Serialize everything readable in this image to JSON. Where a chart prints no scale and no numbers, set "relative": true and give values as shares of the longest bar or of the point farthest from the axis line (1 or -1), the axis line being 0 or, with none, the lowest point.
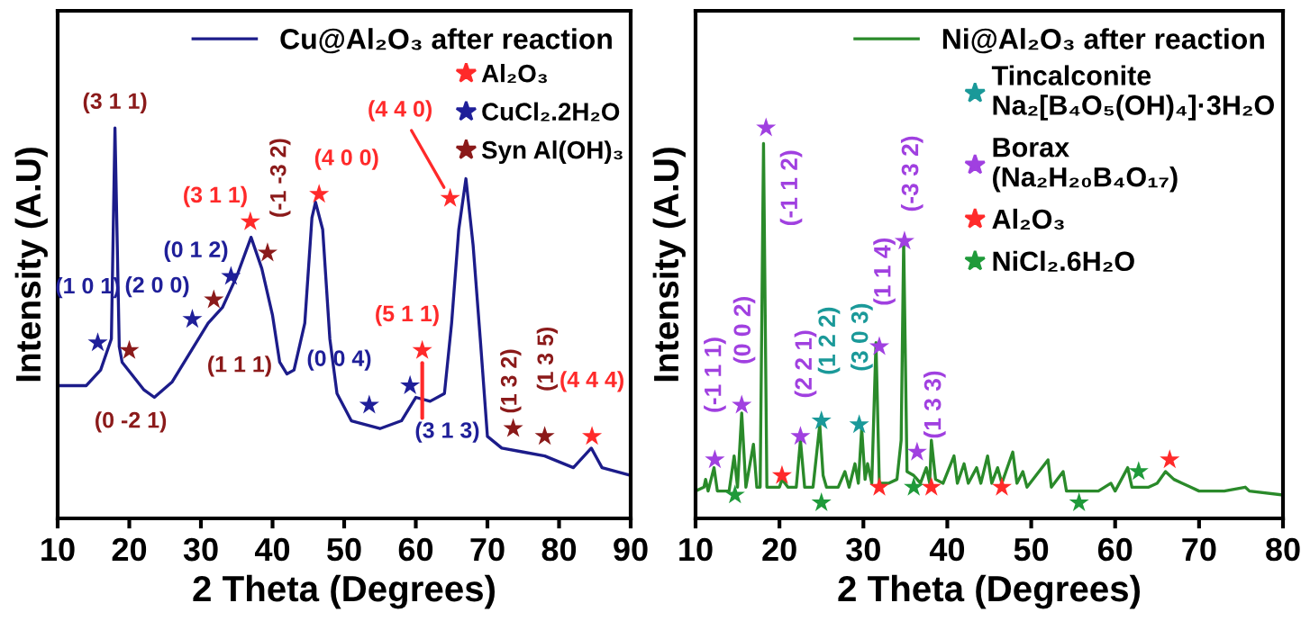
{
  "chart_data": [
    {
      "type": "line",
      "relative": true,
      "xlabel": "2 Theta (Degrees)",
      "ylabel": "Intensity (A.U)",
      "xlim": [
        10,
        90
      ],
      "xticks": [
        10,
        20,
        30,
        40,
        50,
        60,
        70,
        80,
        90
      ],
      "tick_labels": "x",
      "legend": "top right",
      "grid": false,
      "series": [
        {
          "type": "line",
          "name": "Cu@Al₂O₃ after reaction",
          "color": "#1c1c8a",
          "line_style": "solid",
          "marker": "none",
          "x": [
            10,
            14,
            16,
            17.5,
            18,
            18.6,
            19,
            22,
            23.5,
            26,
            29,
            31,
            33,
            35,
            37,
            38.5,
            40,
            41,
            42,
            43,
            44.5,
            45.5,
            46,
            47,
            48,
            49,
            51,
            55,
            58,
            60,
            62,
            64,
            65,
            66,
            67,
            68,
            69,
            70,
            72,
            75,
            78,
            82,
            84.5,
            86,
            90
          ],
          "values": [
            0.34,
            0.34,
            0.38,
            0.46,
            1.0,
            0.44,
            0.4,
            0.33,
            0.31,
            0.35,
            0.44,
            0.5,
            0.54,
            0.62,
            0.72,
            0.64,
            0.52,
            0.4,
            0.37,
            0.38,
            0.5,
            0.77,
            0.81,
            0.74,
            0.46,
            0.32,
            0.25,
            0.23,
            0.25,
            0.31,
            0.3,
            0.32,
            0.5,
            0.74,
            0.87,
            0.7,
            0.46,
            0.21,
            0.18,
            0.17,
            0.16,
            0.13,
            0.18,
            0.13,
            0.11
          ]
        },
        {
          "type": "scatter",
          "name": "Al₂O₃",
          "color": "#ff2a2a",
          "marker": "star",
          "x": [
            36.9,
            46.5,
            64.8,
            60.9,
            84.6
          ],
          "values": [
            0.76,
            0.83,
            0.82,
            0.43,
            0.21
          ]
        },
        {
          "type": "scatter",
          "name": "CuCl₂.2H₂O",
          "color": "#1f1f99",
          "marker": "star",
          "x": [
            15.6,
            28.8,
            34.2,
            53.5,
            59.2
          ],
          "values": [
            0.45,
            0.51,
            0.62,
            0.29,
            0.34
          ]
        },
        {
          "type": "scatter",
          "name": "Syn Al(OH)₃",
          "color": "#8b1a1a",
          "marker": "star",
          "x": [
            20.0,
            31.8,
            39.3,
            73.6,
            78.0
          ],
          "values": [
            0.43,
            0.56,
            0.68,
            0.23,
            0.21
          ]
        }
      ],
      "annotations": [
        {
          "text": "(3 1 1)",
          "x": 18,
          "y": 1.0
        },
        {
          "text": "(1 0 1)",
          "x": 15.6,
          "y": 0.45
        },
        "(0 -2 1)",
        {
          "text": "(2 0 0)",
          "x": 28.8,
          "y": 0.51
        },
        "(1 1 1)",
        {
          "text": "(0 1 2)",
          "x": 34.2,
          "y": 0.62
        },
        {
          "text": "(3 1 1)",
          "x": 36.9,
          "y": 0.76
        },
        {
          "text": "(-1 -3 2)",
          "x": 39.3,
          "y": 0.68
        },
        {
          "text": "(4 0 0)",
          "x": 46.5,
          "y": 0.83
        },
        {
          "text": "(4 4 0)",
          "x": 64.8,
          "y": 0.82
        },
        {
          "text": "(5 1 1)",
          "x": 60.9,
          "y": 0.43
        },
        {
          "text": "(0 0 4)",
          "x": 53.5,
          "y": 0.29
        },
        "(3 1 3)",
        {
          "text": "(1 3 2)",
          "x": 73.6,
          "y": 0.23
        },
        {
          "text": "(1 3 5)",
          "x": 78.0,
          "y": 0.21
        },
        {
          "text": "(4 4 4)",
          "x": 84.6,
          "y": 0.21
        }
      ]
    },
    {
      "type": "line",
      "relative": true,
      "xlabel": "2 Theta (Degrees)",
      "ylabel": "Intensity (A.U)",
      "xlim": [
        10,
        80
      ],
      "xticks": [
        10,
        20,
        30,
        40,
        50,
        60,
        70,
        80
      ],
      "tick_labels": "x",
      "legend": "top right",
      "grid": false,
      "series": [
        {
          "type": "line",
          "name": "Ni@Al₂O₃ after reaction",
          "color": "#2a8a2a",
          "line_style": "solid",
          "marker": "none",
          "x": [
            10,
            11,
            11.2,
            11.5,
            12.2,
            12.6,
            14,
            14.6,
            15,
            15.5,
            16,
            16.9,
            17.3,
            17.7,
            18.1,
            18.5,
            20,
            20.3,
            21,
            22,
            22.5,
            23,
            24,
            24.8,
            25.2,
            25.6,
            27,
            27.8,
            28.3,
            29,
            29.4,
            29.8,
            30.2,
            30.5,
            31,
            31.5,
            31.9,
            33,
            34,
            34.5,
            34.8,
            35.2,
            36,
            36.8,
            37.5,
            37.9,
            38.1,
            38.6,
            39.5,
            40.8,
            41.2,
            42,
            42.5,
            43.5,
            44,
            44.8,
            45.3,
            46,
            46.5,
            47.8,
            48.3,
            49,
            49.5,
            52,
            52.4,
            53.8,
            54.2,
            56,
            58,
            59.5,
            60,
            61.5,
            62,
            63,
            64,
            65,
            66,
            67,
            68,
            69,
            70,
            73,
            75.5,
            76,
            80
          ],
          "values": [
            0.07,
            0.08,
            0.1,
            0.07,
            0.13,
            0.07,
            0.07,
            0.16,
            0.08,
            0.27,
            0.08,
            0.19,
            0.08,
            0.08,
            0.96,
            0.08,
            0.08,
            0.1,
            0.08,
            0.08,
            0.2,
            0.08,
            0.08,
            0.24,
            0.11,
            0.08,
            0.08,
            0.12,
            0.08,
            0.14,
            0.09,
            0.23,
            0.1,
            0.14,
            0.09,
            0.45,
            0.09,
            0.09,
            0.1,
            0.2,
            0.71,
            0.12,
            0.11,
            0.09,
            0.13,
            0.09,
            0.2,
            0.1,
            0.09,
            0.16,
            0.09,
            0.14,
            0.09,
            0.13,
            0.09,
            0.16,
            0.09,
            0.13,
            0.09,
            0.17,
            0.09,
            0.12,
            0.08,
            0.15,
            0.08,
            0.12,
            0.07,
            0.07,
            0.07,
            0.09,
            0.07,
            0.13,
            0.08,
            0.08,
            0.08,
            0.09,
            0.12,
            0.1,
            0.09,
            0.08,
            0.07,
            0.07,
            0.08,
            0.07,
            0.06
          ]
        },
        {
          "type": "scatter",
          "name": "Tincalconite\nNa₂[B₄O₅(OH)₄]·3H₂O",
          "color": "#1a9999",
          "marker": "star",
          "x": [
            25.0,
            29.5
          ],
          "values": [
            0.25,
            0.24
          ]
        },
        {
          "type": "scatter",
          "name": "Borax\n(Na₂H₂₀B₄O₁₇)",
          "color": "#a040e0",
          "marker": "star",
          "x": [
            12.3,
            15.5,
            18.4,
            22.5,
            31.9,
            34.9,
            36.4
          ],
          "values": [
            0.15,
            0.29,
            1.0,
            0.21,
            0.44,
            0.71,
            0.17
          ]
        },
        {
          "type": "scatter",
          "name": "Al₂O₃",
          "color": "#ff2a2a",
          "marker": "star",
          "x": [
            20.3,
            31.9,
            38.1,
            46.5,
            66.5
          ],
          "values": [
            0.11,
            0.08,
            0.08,
            0.08,
            0.15
          ]
        },
        {
          "type": "scatter",
          "name": "NiCl₂.6H₂O",
          "color": "#1f9a3a",
          "marker": "star",
          "x": [
            14.7,
            25.0,
            36.0,
            55.7,
            62.8
          ],
          "values": [
            0.06,
            0.04,
            0.08,
            0.04,
            0.12
          ]
        }
      ],
      "annotations": [
        {
          "text": "(-1 1 1)",
          "x": 12.3,
          "y": 0.15
        },
        {
          "text": "(0 0 2)",
          "x": 15.5,
          "y": 0.29
        },
        {
          "text": "(-1 1 2)",
          "x": 18.4,
          "y": 1.0
        },
        {
          "text": "(2 2 1)",
          "x": 22.5,
          "y": 0.21
        },
        {
          "text": "(1 2 2)",
          "x": 25.0,
          "y": 0.25
        },
        {
          "text": "(3 0 3)",
          "x": 29.5,
          "y": 0.24
        },
        {
          "text": "(1 1 4)",
          "x": 31.9,
          "y": 0.44
        },
        {
          "text": "(-3 3 2)",
          "x": 34.9,
          "y": 0.71
        },
        {
          "text": "(1 3 3)",
          "x": 36.4,
          "y": 0.17
        }
      ]
    }
  ]
}
